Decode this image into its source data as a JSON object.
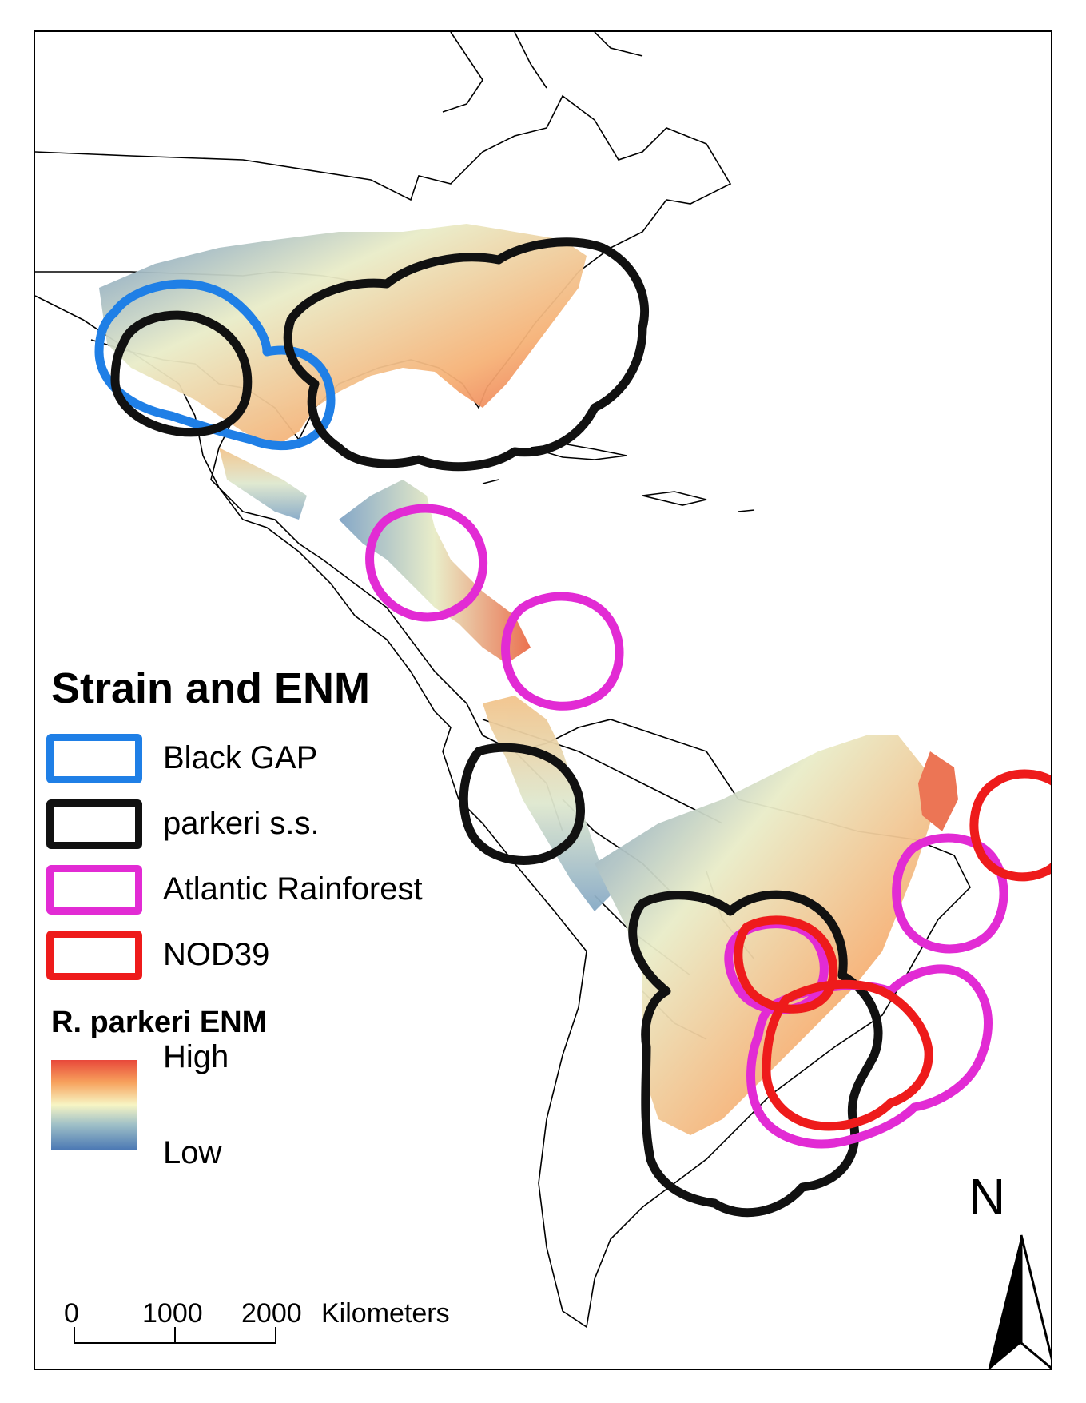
{
  "legend": {
    "title": "Strain and ENM",
    "items": [
      {
        "label": "Black GAP",
        "color": "#1f7fe6"
      },
      {
        "label": "parkeri s.s.",
        "color": "#111111"
      },
      {
        "label": "Atlantic Rainforest",
        "color": "#e22bd4"
      },
      {
        "label": "NOD39",
        "color": "#ee1b1b"
      }
    ]
  },
  "enm": {
    "title": "R. parkeri ENM",
    "high_label": "High",
    "low_label": "Low",
    "colors": [
      "#e8483a",
      "#f7a25d",
      "#f7f5c4",
      "#9fc0c7",
      "#4c79b4"
    ]
  },
  "scale_bar": {
    "ticks": [
      "0",
      "1000",
      "2000"
    ],
    "unit": "Kilometers"
  },
  "north_arrow": {
    "label": "N"
  }
}
